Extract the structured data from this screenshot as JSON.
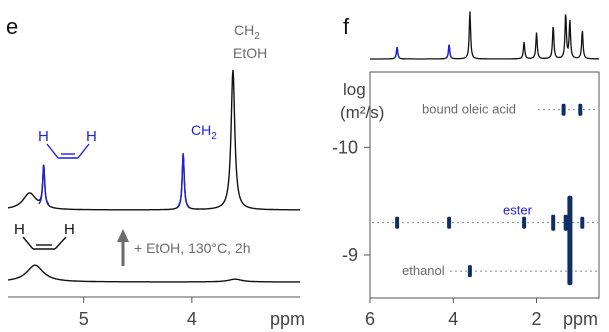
{
  "panels": {
    "e": {
      "letter": "e"
    },
    "f": {
      "letter": "f"
    }
  },
  "colors": {
    "black": "#111111",
    "blue": "#1f1fe6",
    "gray": "#6b6b6b",
    "navy": "#0d2f66"
  },
  "chart_data": [
    {
      "type": "line",
      "panel": "e",
      "xlabel": "ppm",
      "x_ticks": [
        "5",
        "4"
      ],
      "xlim": [
        5.7,
        3.0
      ],
      "x_reversed": true,
      "annotations": {
        "ch2_etoh_line1": "CH",
        "ch2_etoh_sub": "2",
        "ch2_etoh_line2": "EtOH",
        "ch2_blue": "CH",
        "ch2_blue_sub": "2",
        "vinyl_H_left": "H",
        "vinyl_H_right": "H",
        "vinyl_H_left_lower": "H",
        "vinyl_H_right_lower": "H",
        "arrow_text": "+ EtOH, 130°C, 2h"
      },
      "series": [
        {
          "role": "upper spectrum",
          "peaks": [
            {
              "ppm": 5.5,
              "height": 0.12
            },
            {
              "ppm": 5.37,
              "height": 0.3
            },
            {
              "ppm": 4.08,
              "height": 0.4
            },
            {
              "ppm": 3.62,
              "height": 1.0
            }
          ]
        },
        {
          "role": "lower spectrum",
          "peaks": [
            {
              "ppm": 5.45,
              "height": 0.12
            },
            {
              "ppm": 3.6,
              "height": 0.02
            }
          ]
        }
      ]
    },
    {
      "type": "scatter",
      "panel": "f",
      "xlabel": "ppm",
      "ylabel": "log",
      "ylabel_unit": "(m²/s)",
      "x_ticks": [
        "6",
        "4",
        "2"
      ],
      "y_ticks": [
        "-10",
        "-9"
      ],
      "xlim": [
        6.0,
        0.5
      ],
      "ylim": [
        -10.7,
        -8.6
      ],
      "labels": {
        "bound": "bound oleic acid",
        "ester": "ester",
        "ethanol": "ethanol"
      },
      "series": [
        {
          "role": "bound oleic acid",
          "log_d": -10.35,
          "ppm": [
            1.35,
            0.95
          ]
        },
        {
          "role": "ester",
          "log_d": -9.3,
          "ppm": [
            5.35,
            4.1,
            2.3,
            1.6,
            1.3,
            0.9
          ]
        },
        {
          "role": "ethanol",
          "log_d": -8.85,
          "ppm": [
            3.6,
            1.2
          ]
        }
      ],
      "projection": {
        "peaks": [
          {
            "ppm": 5.35,
            "height": 0.25,
            "color": "blue"
          },
          {
            "ppm": 4.1,
            "height": 0.3,
            "color": "blue"
          },
          {
            "ppm": 3.6,
            "height": 1.0
          },
          {
            "ppm": 2.3,
            "height": 0.35
          },
          {
            "ppm": 2.0,
            "height": 0.55
          },
          {
            "ppm": 1.6,
            "height": 0.7
          },
          {
            "ppm": 1.3,
            "height": 0.95
          },
          {
            "ppm": 1.2,
            "height": 0.8
          },
          {
            "ppm": 0.9,
            "height": 0.6
          }
        ]
      }
    }
  ]
}
